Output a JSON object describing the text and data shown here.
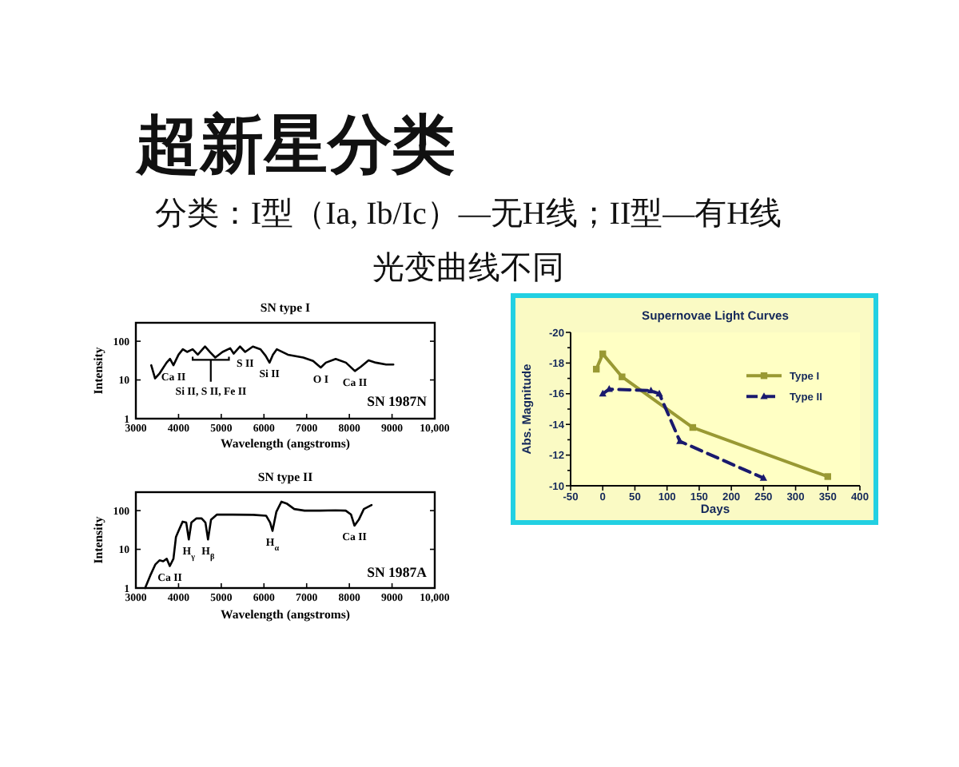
{
  "chart_data": [
    {
      "type": "other",
      "title": "超新星分类",
      "subtitle": "分类：I型（Ia, Ib/Ic）—无H线；II型—有H线",
      "annotations": [
        "光变曲线不同"
      ]
    },
    {
      "type": "line",
      "title": "SN type I",
      "xlabel": "Wavelength (angstroms)",
      "ylabel": "Intensity",
      "log": true,
      "marker": "none",
      "xlim": [
        3000,
        10000
      ],
      "xticks": [
        3000,
        4000,
        5000,
        6000,
        7000,
        8000,
        9000,
        {
          "value": 10000,
          "label": "10,000"
        }
      ],
      "ylim": [
        1,
        300
      ],
      "yticks": [
        1,
        10,
        100
      ],
      "series": [
        {
          "color": "#000000",
          "x": [
            3360,
            3450,
            3560,
            3720,
            3800,
            3880,
            4000,
            4100,
            4200,
            4330,
            4450,
            4620,
            4740,
            4860,
            5030,
            5210,
            5290,
            5440,
            5560,
            5740,
            5920,
            6040,
            6130,
            6210,
            6300,
            6560,
            6920,
            7150,
            7330,
            7450,
            7680,
            7920,
            8130,
            8270,
            8450,
            8620,
            8860,
            9030
          ],
          "values": [
            24,
            11,
            15,
            28,
            35,
            24,
            45,
            62,
            53,
            62,
            45,
            73,
            52,
            38,
            53,
            66,
            48,
            73,
            53,
            73,
            62,
            42,
            28,
            45,
            62,
            45,
            38,
            31,
            21,
            28,
            35,
            28,
            17,
            22,
            32,
            28,
            25,
            25
          ]
        }
      ],
      "annotations": [
        {
          "text": "Ca II",
          "x": 3880,
          "y": 24
        },
        "Si II, S II, Fe II",
        {
          "text": "S II",
          "x": 5560,
          "y": 53
        },
        {
          "text": "Si II",
          "x": 6130,
          "y": 28
        },
        {
          "text": "O I",
          "x": 7330,
          "y": 21
        },
        {
          "text": "Ca II",
          "x": 8130,
          "y": 17
        },
        "SN 1987N"
      ]
    },
    {
      "type": "line",
      "title": "Supernovae Light Curves",
      "xlabel": "Days",
      "ylabel": "Abs. Magnitude",
      "legend": "right",
      "xlim": [
        -50,
        400
      ],
      "xticks": [
        -50,
        0,
        50,
        100,
        150,
        200,
        250,
        300,
        350,
        400
      ],
      "ylim": [
        -10,
        -20
      ],
      "yticks": [
        -20,
        {
          "value": -19,
          "label": null
        },
        -18,
        {
          "value": -17,
          "label": null
        },
        -16,
        {
          "value": -15,
          "label": null
        },
        -14,
        {
          "value": -13,
          "label": null
        },
        -12,
        {
          "value": -11,
          "label": null
        },
        -10
      ],
      "series": [
        {
          "name": "Type I",
          "color": "#999933",
          "marker": "square",
          "line_style": "solid",
          "x": [
            -10,
            0,
            30,
            140,
            350
          ],
          "values": [
            -17.6,
            -18.6,
            -17.1,
            -13.8,
            -10.6
          ]
        },
        {
          "name": "Type II",
          "color": "#1a1a6e",
          "marker": "triangle",
          "line_style": "dashed",
          "x": [
            0,
            10,
            75,
            88,
            120,
            250
          ],
          "values": [
            -16.0,
            -16.3,
            -16.2,
            -16.0,
            -12.9,
            -10.5
          ]
        }
      ]
    },
    {
      "type": "line",
      "title": "SN type II",
      "xlabel": "Wavelength (angstroms)",
      "ylabel": "Intensity",
      "log": true,
      "marker": "none",
      "xlim": [
        3000,
        10000
      ],
      "xticks": [
        3000,
        4000,
        5000,
        6000,
        7000,
        8000,
        9000,
        {
          "value": 10000,
          "label": "10,000"
        }
      ],
      "ylim": [
        1,
        300
      ],
      "yticks": [
        1,
        10,
        100
      ],
      "series": [
        {
          "color": "#000000",
          "x": [
            3217,
            3337,
            3458,
            3554,
            3640,
            3723,
            3795,
            3880,
            3940,
            4000,
            4096,
            4180,
            4240,
            4300,
            4420,
            4540,
            4630,
            4690,
            4760,
            4900,
            5265,
            5750,
            6050,
            6145,
            6200,
            6290,
            6410,
            6530,
            6710,
            6950,
            7310,
            7675,
            7915,
            8040,
            8120,
            8220,
            8340,
            8520
          ],
          "values": [
            1,
            2.1,
            4.1,
            5.2,
            4.9,
            5.7,
            3.7,
            5.7,
            21,
            30,
            52,
            49,
            18,
            49,
            63,
            63,
            49,
            18,
            58,
            79,
            79,
            78,
            74,
            49,
            30,
            93,
            170,
            153,
            110,
            100,
            100,
            102,
            100,
            79,
            41,
            58,
            110,
            139
          ]
        }
      ],
      "annotations": [
        {
          "text": "Ca II",
          "x": 3795,
          "y": 3.7
        },
        {
          "text": "H$_{γ}$",
          "x": 4240,
          "y": 18
        },
        {
          "text": "H$_{β}$",
          "x": 4690,
          "y": 18
        },
        {
          "text": "H$_{α}$",
          "x": 6200,
          "y": 30
        },
        {
          "text": "Ca II",
          "x": 8120,
          "y": 41
        },
        "SN 1987A"
      ]
    }
  ]
}
